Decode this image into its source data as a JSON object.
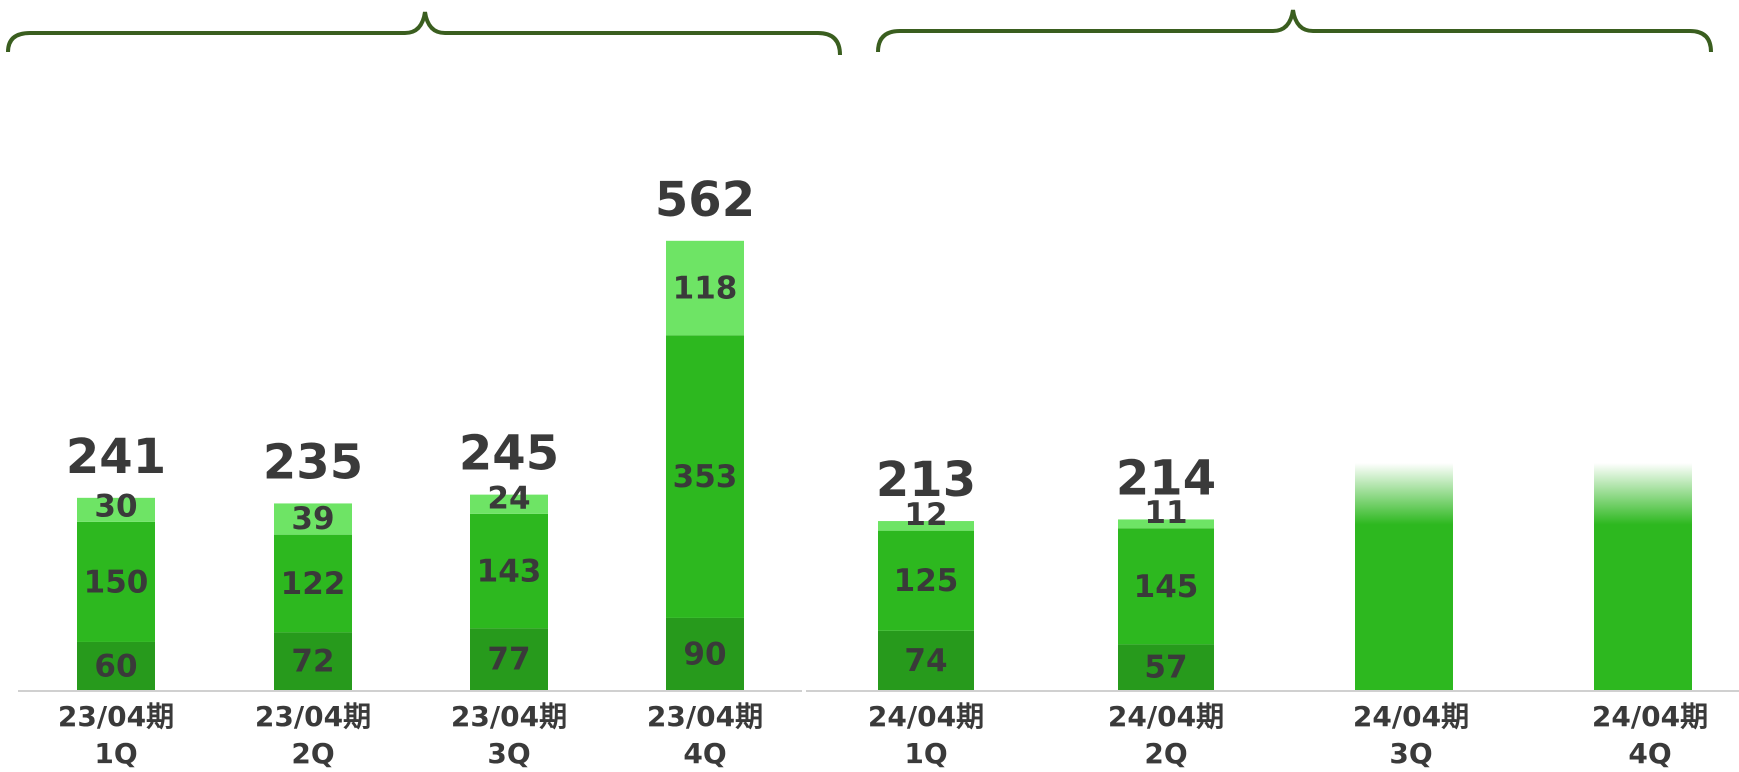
{
  "chart_data": {
    "type": "stacked_bar",
    "categories": [
      [
        "23/04期",
        "1Q"
      ],
      [
        "23/04期",
        "2Q"
      ],
      [
        "23/04期",
        "3Q"
      ],
      [
        "23/04期",
        "4Q"
      ],
      [
        "24/04期",
        "1Q"
      ],
      [
        "24/04期",
        "2Q"
      ],
      [
        "24/04期",
        "3Q"
      ],
      [
        "24/04期",
        "4Q"
      ]
    ],
    "series": [
      {
        "color": "#279a1c",
        "values": [
          60,
          72,
          77,
          90,
          74,
          57,
          null,
          null
        ]
      },
      {
        "color": "#2db81f",
        "values": [
          150,
          122,
          143,
          353,
          125,
          145,
          null,
          null
        ]
      },
      {
        "color": "#6ee465",
        "values": [
          30,
          39,
          24,
          118,
          12,
          11,
          null,
          null
        ]
      }
    ],
    "totals": [
      241,
      235,
      245,
      562,
      213,
      214,
      null,
      null
    ]
  }
}
